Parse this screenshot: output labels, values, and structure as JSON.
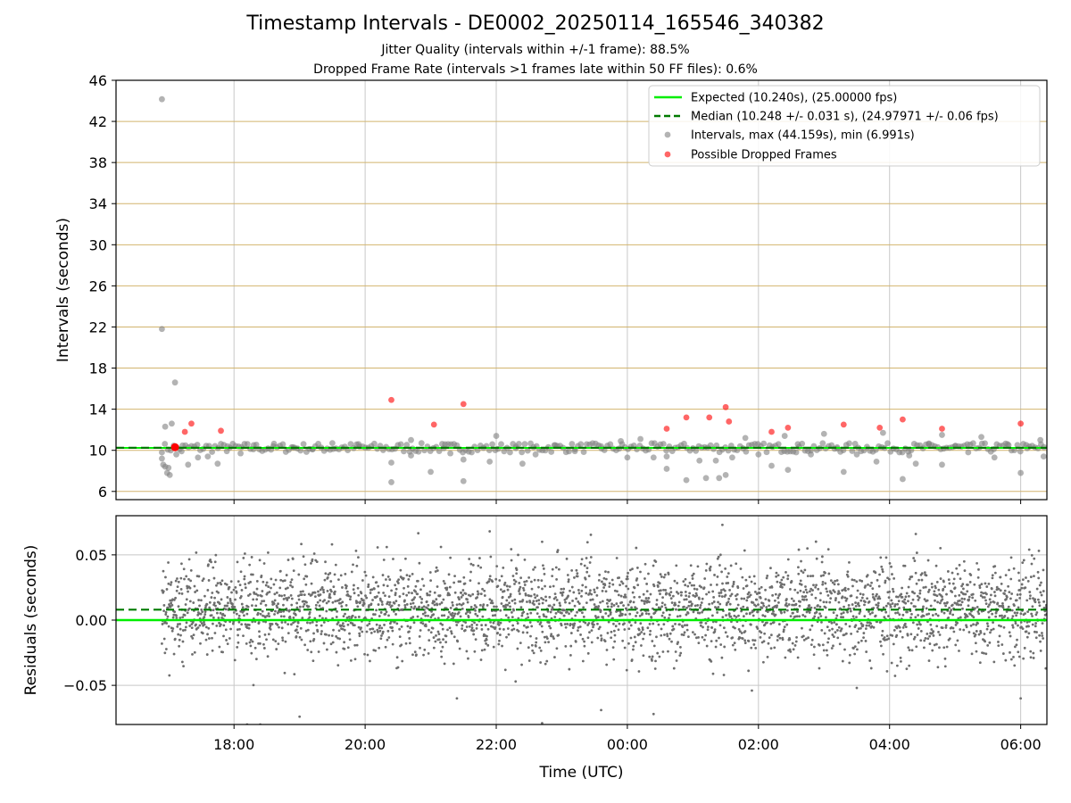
{
  "title": "Timestamp Intervals - DE0002_20250114_165546_340382",
  "subtitle_1": "Jitter Quality (intervals within +/-1 frame): 88.5%",
  "subtitle_2": "Dropped Frame Rate (intervals >1 frames late within 50 FF files): 0.6%",
  "colors": {
    "expected": "#00ee00",
    "median": "#007a00",
    "intervals": "#808080",
    "dropped": "#ff0000",
    "grid_top": "#d2b46e",
    "grid": "#c8c8c8"
  },
  "chart_data": [
    {
      "type": "scatter",
      "ylabel": "Intervals (seconds)",
      "xlabel": "",
      "x_unit": "hours UTC, continuing past midnight (24 = 00:00)",
      "xlim": [
        16.2,
        30.4
      ],
      "ylim": [
        5.2,
        46
      ],
      "yticks": [
        6,
        10,
        14,
        18,
        22,
        26,
        30,
        34,
        38,
        42,
        46
      ],
      "xticks": [
        "18:00",
        "20:00",
        "22:00",
        "00:00",
        "02:00",
        "04:00",
        "06:00"
      ],
      "legend_position": "top-right",
      "legend": [
        "Expected (10.240s), (25.00000 fps)",
        "Median (10.248 +/- 0.031 s), (24.97971 +/- 0.06 fps)",
        "Intervals, max (44.159s), min (6.991s)",
        "Possible Dropped Frames"
      ],
      "expected": 10.24,
      "median": 10.248,
      "series": [
        {
          "name": "Intervals, max (44.159s), min (6.991s)",
          "points": [
            [
              16.9,
              44.16
            ],
            [
              16.9,
              21.8
            ],
            [
              17.1,
              16.6
            ],
            [
              16.95,
              12.3
            ],
            [
              17.05,
              12.6
            ],
            [
              16.92,
              8.6
            ],
            [
              16.95,
              8.4
            ],
            [
              17.0,
              8.3
            ],
            [
              16.98,
              7.8
            ],
            [
              17.02,
              7.6
            ],
            [
              16.9,
              9.2
            ],
            [
              17.12,
              9.6
            ],
            [
              17.2,
              9.9
            ],
            [
              17.3,
              8.6
            ],
            [
              17.45,
              9.3
            ],
            [
              17.6,
              9.4
            ],
            [
              17.75,
              8.7
            ],
            [
              17.9,
              10.4
            ],
            [
              18.1,
              9.7
            ],
            [
              18.3,
              10.5
            ],
            [
              18.6,
              10.4
            ],
            [
              18.9,
              10.3
            ],
            [
              19.2,
              10.1
            ],
            [
              19.5,
              10.7
            ],
            [
              19.9,
              10.6
            ],
            [
              20.4,
              8.8
            ],
            [
              20.4,
              6.9
            ],
            [
              20.7,
              9.5
            ],
            [
              20.7,
              11.0
            ],
            [
              21.0,
              7.9
            ],
            [
              21.2,
              10.2
            ],
            [
              21.3,
              9.7
            ],
            [
              21.5,
              9.1
            ],
            [
              21.5,
              7.0
            ],
            [
              21.9,
              8.9
            ],
            [
              22.0,
              11.4
            ],
            [
              22.3,
              10.2
            ],
            [
              22.4,
              8.7
            ],
            [
              22.6,
              9.6
            ],
            [
              22.9,
              10.5
            ],
            [
              23.2,
              10.1
            ],
            [
              23.6,
              10.4
            ],
            [
              23.9,
              10.9
            ],
            [
              24.0,
              9.3
            ],
            [
              24.2,
              11.1
            ],
            [
              24.4,
              9.3
            ],
            [
              24.6,
              8.2
            ],
            [
              24.6,
              9.4
            ],
            [
              24.9,
              7.1
            ],
            [
              25.1,
              9.0
            ],
            [
              25.2,
              7.3
            ],
            [
              25.35,
              9.0
            ],
            [
              25.4,
              7.3
            ],
            [
              25.5,
              7.6
            ],
            [
              25.6,
              9.3
            ],
            [
              25.8,
              11.2
            ],
            [
              26.0,
              9.6
            ],
            [
              26.2,
              8.5
            ],
            [
              26.4,
              11.4
            ],
            [
              26.45,
              8.1
            ],
            [
              26.6,
              10.6
            ],
            [
              26.8,
              9.6
            ],
            [
              27.0,
              11.6
            ],
            [
              27.2,
              10.3
            ],
            [
              27.3,
              7.9
            ],
            [
              27.5,
              9.6
            ],
            [
              27.8,
              8.9
            ],
            [
              27.9,
              11.7
            ],
            [
              28.2,
              7.2
            ],
            [
              28.3,
              9.5
            ],
            [
              28.4,
              8.7
            ],
            [
              28.6,
              10.6
            ],
            [
              28.8,
              8.6
            ],
            [
              28.8,
              11.5
            ],
            [
              29.0,
              10.4
            ],
            [
              29.2,
              9.8
            ],
            [
              29.4,
              11.3
            ],
            [
              29.6,
              9.3
            ],
            [
              29.8,
              10.6
            ],
            [
              30.0,
              7.8
            ],
            [
              30.1,
              10.2
            ],
            [
              30.3,
              11.0
            ],
            [
              30.35,
              9.4
            ]
          ]
        },
        {
          "name": "Possible Dropped Frames",
          "points": [
            [
              17.1,
              10.35
            ],
            [
              17.25,
              11.8
            ],
            [
              17.35,
              12.6
            ],
            [
              17.8,
              11.9
            ],
            [
              20.4,
              14.9
            ],
            [
              21.05,
              12.5
            ],
            [
              21.5,
              14.5
            ],
            [
              24.6,
              12.1
            ],
            [
              24.9,
              13.2
            ],
            [
              25.25,
              13.2
            ],
            [
              25.5,
              14.2
            ],
            [
              25.55,
              12.8
            ],
            [
              26.2,
              11.8
            ],
            [
              26.45,
              12.2
            ],
            [
              27.3,
              12.5
            ],
            [
              27.85,
              12.2
            ],
            [
              28.2,
              13.0
            ],
            [
              28.8,
              12.1
            ],
            [
              30.0,
              12.6
            ]
          ]
        }
      ]
    },
    {
      "type": "scatter",
      "ylabel": "Residuals (seconds)",
      "xlabel": "Time (UTC)",
      "xlim": [
        16.2,
        30.4
      ],
      "ylim": [
        -0.08,
        0.08
      ],
      "yticks": [
        "0.05",
        "0.00",
        "−0.05"
      ],
      "ytick_values": [
        0.05,
        0.0,
        -0.05
      ],
      "expected_residual": 0.0,
      "median_residual": 0.008,
      "residual_spread_sd": 0.018,
      "x_range": [
        16.9,
        30.4
      ],
      "series": [
        {
          "name": "Residuals",
          "approx_points": 3200
        }
      ],
      "outliers": [
        [
          25.45,
          0.073
        ],
        [
          21.9,
          0.068
        ],
        [
          22.7,
          0.06
        ],
        [
          28.4,
          0.066
        ],
        [
          24.4,
          -0.072
        ],
        [
          22.7,
          -0.079
        ],
        [
          19.0,
          -0.074
        ],
        [
          23.6,
          -0.069
        ],
        [
          30.0,
          -0.06
        ],
        [
          21.4,
          -0.06
        ],
        [
          18.2,
          -0.08
        ],
        [
          18.4,
          -0.08
        ],
        [
          25.9,
          -0.054
        ],
        [
          27.5,
          -0.052
        ]
      ]
    }
  ]
}
